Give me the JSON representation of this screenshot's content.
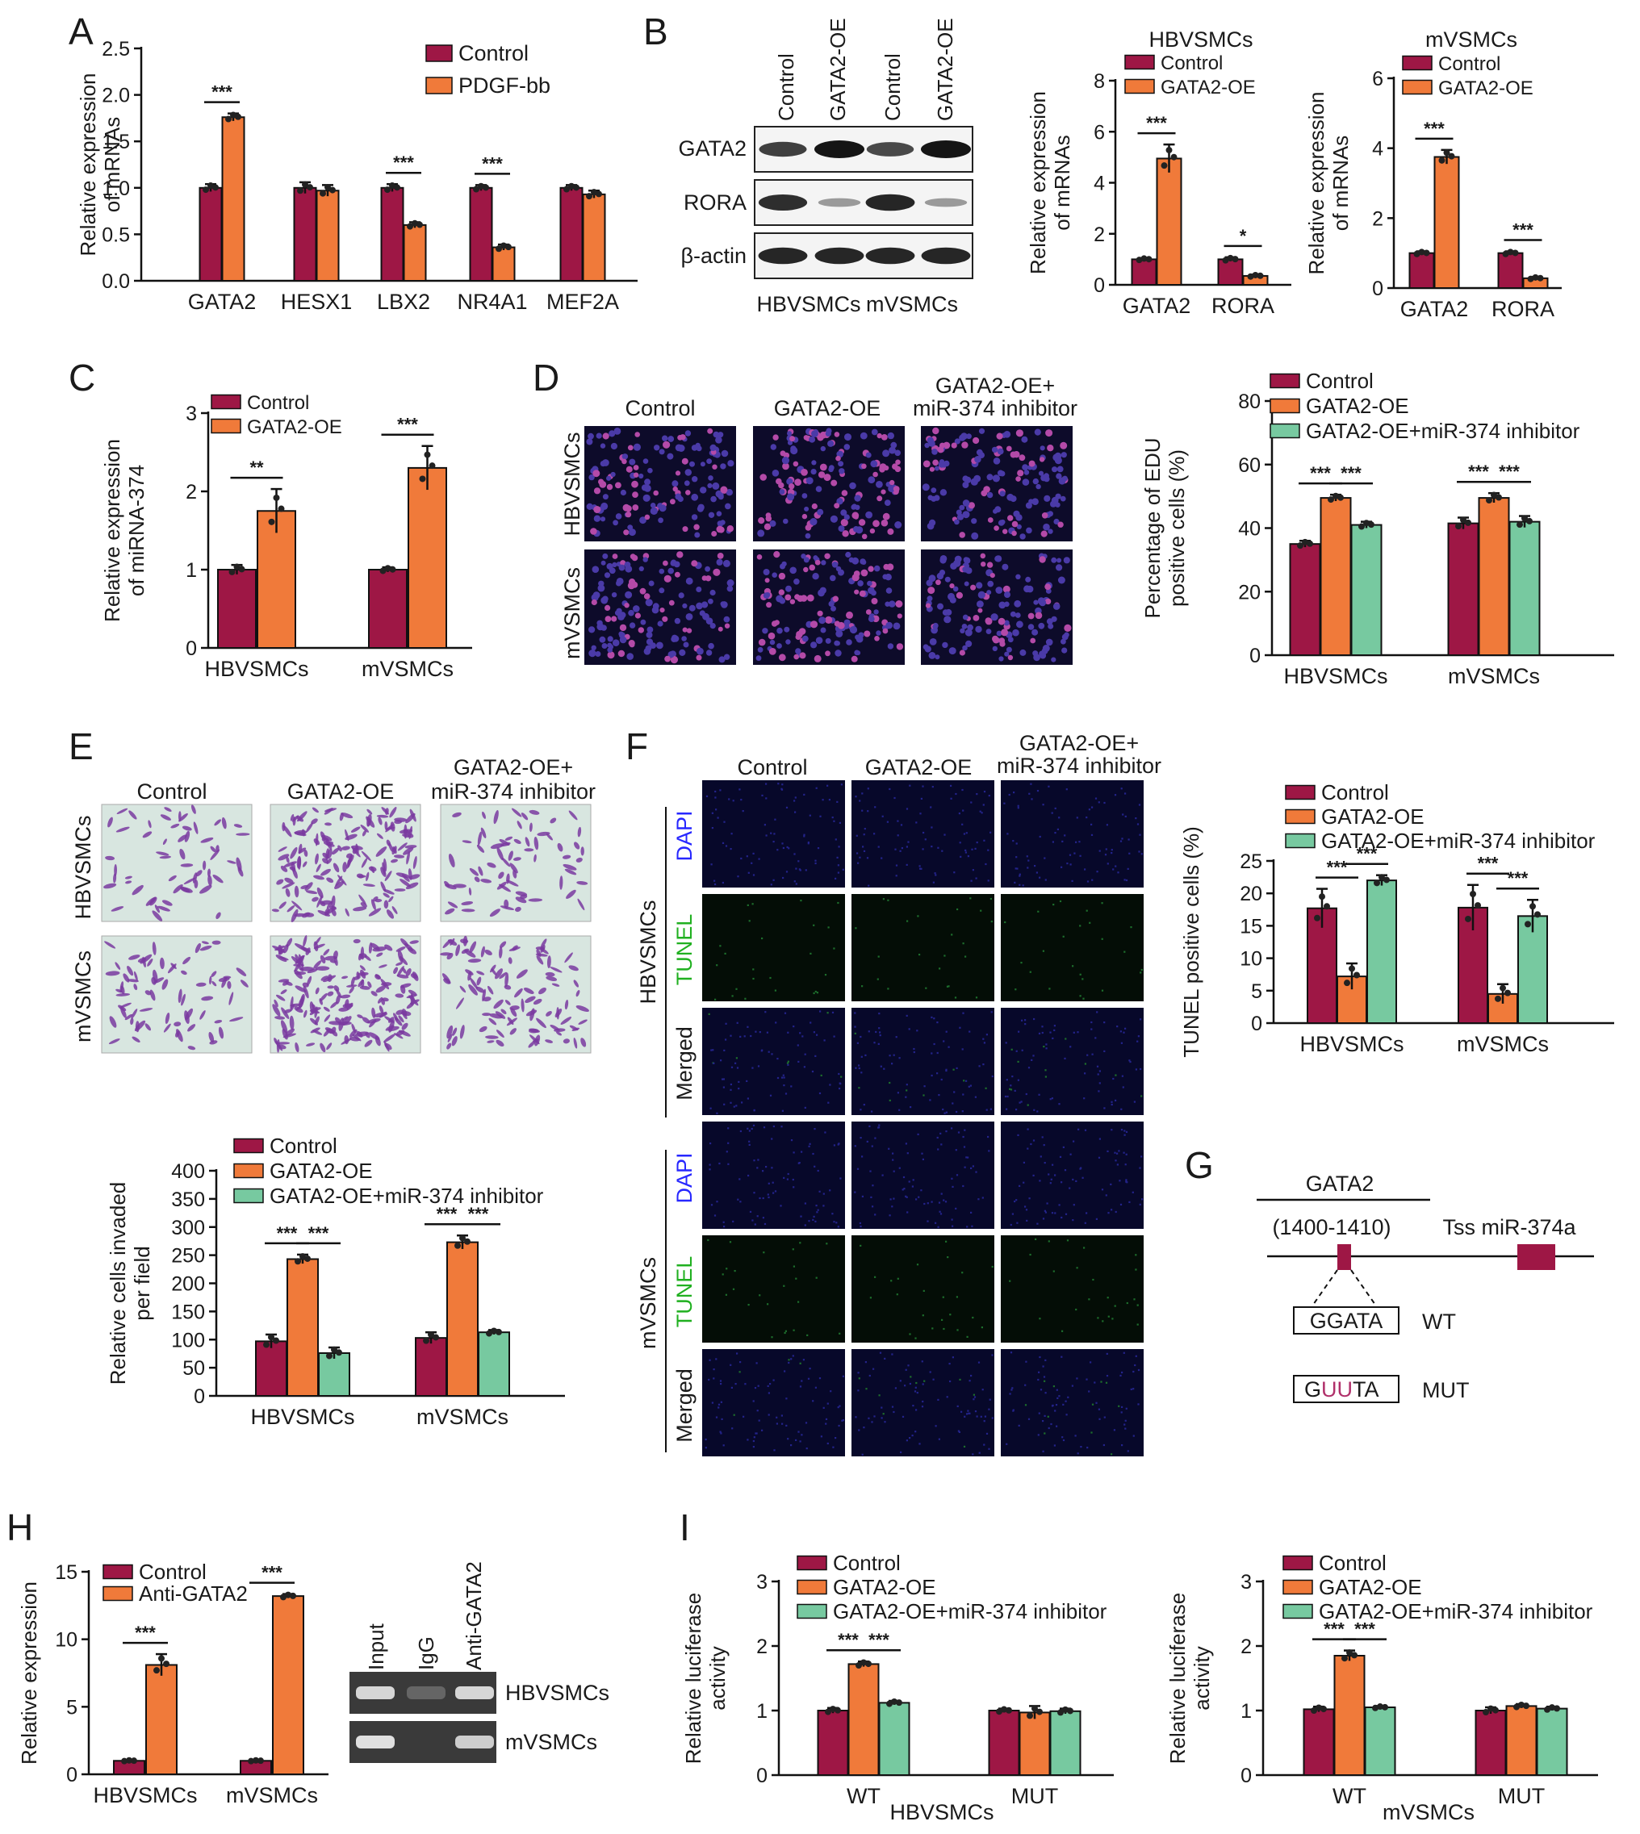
{
  "panel_letters": {
    "A": "A",
    "B": "B",
    "C": "C",
    "D": "D",
    "E": "E",
    "F": "F",
    "G": "G",
    "H": "H",
    "I": "I"
  },
  "colors": {
    "control": "#9e1745",
    "treat": "#f07a3a",
    "inhib": "#77c9a0",
    "nucleus": "#4a3aa8",
    "crystal": "#7a3aa0",
    "dapi": "#2727ff",
    "tunel": "#20b020",
    "mut": "#b0306a"
  },
  "common_labels": {
    "hbv": "HBVSMCs",
    "mv": "mVSMCs",
    "control": "Control",
    "oe": "GATA2-OE",
    "oe_plus": "GATA2-OE+",
    "inhibitor": "miR-374 inhibitor"
  },
  "panel_b_blot": {
    "lanes": [
      "Control",
      "GATA2-OE",
      "Control",
      "GATA2-OE"
    ],
    "rows": [
      "GATA2",
      "RORA",
      "β-actin"
    ],
    "groups": [
      "HBVSMCs",
      "mVSMCs"
    ],
    "intensities": [
      [
        0.75,
        1.0,
        0.7,
        1.0
      ],
      [
        0.85,
        0.2,
        0.9,
        0.2
      ],
      [
        0.9,
        0.9,
        0.9,
        0.9
      ]
    ]
  },
  "panel_f_stains": [
    "DAPI",
    "TUNEL",
    "Merged"
  ],
  "panel_g": {
    "gene": "GATA2",
    "site": "(1400-1410)",
    "tss": "Tss miR-374a",
    "wt_seq": "GGATA",
    "wt_label": "WT",
    "mut_seq_a": "G",
    "mut_seq_b": "UU",
    "mut_seq_c": "TA",
    "mut_label": "MUT"
  },
  "panel_h_gel": {
    "lanes": [
      "Input",
      "IgG",
      "Anti-GATA2"
    ],
    "rows": [
      "HBVSMCs",
      "mVSMCs"
    ],
    "intensities": [
      [
        0.9,
        0.25,
        0.9
      ],
      [
        0.95,
        0.0,
        0.85
      ]
    ]
  },
  "chart_data": [
    {
      "panel": "A",
      "type": "bar",
      "categories": [
        "GATA2",
        "HESX1",
        "LBX2",
        "NR4A1",
        "MEF2A"
      ],
      "series": [
        {
          "name": "Control",
          "values": [
            1.0,
            1.0,
            1.0,
            1.0,
            1.0
          ],
          "errors": [
            0.04,
            0.06,
            0.04,
            0.03,
            0.03
          ]
        },
        {
          "name": "PDGF-bb",
          "values": [
            1.76,
            0.97,
            0.6,
            0.36,
            0.93
          ],
          "errors": [
            0.04,
            0.06,
            0.03,
            0.03,
            0.04
          ]
        }
      ],
      "ylabel": "Relative expression\nof mRNAs",
      "ylim": [
        0,
        2.5
      ],
      "yticks": [
        0.0,
        0.5,
        1.0,
        1.5,
        2.0,
        2.5
      ],
      "tick_decimals": 1,
      "significance": [
        [
          "***",
          0
        ],
        [
          "***",
          2
        ],
        [
          "***",
          3
        ]
      ]
    },
    {
      "panel": "B2",
      "type": "bar",
      "title": "HBVSMCs",
      "categories": [
        "GATA2",
        "RORA"
      ],
      "series": [
        {
          "name": "Control",
          "values": [
            1.0,
            1.0
          ],
          "errors": [
            0.05,
            0.08
          ]
        },
        {
          "name": "GATA2-OE",
          "values": [
            4.95,
            0.35
          ],
          "errors": [
            0.55,
            0.05
          ]
        }
      ],
      "ylabel": "Relative expression\nof mRNAs",
      "ylim": [
        0,
        8
      ],
      "yticks": [
        0,
        2,
        4,
        6,
        8
      ],
      "tick_decimals": 0,
      "significance": [
        [
          "***",
          0
        ],
        [
          "*",
          1
        ]
      ]
    },
    {
      "panel": "B3",
      "type": "bar",
      "title": "mVSMCs",
      "categories": [
        "GATA2",
        "RORA"
      ],
      "series": [
        {
          "name": "Control",
          "values": [
            1.0,
            1.0
          ],
          "errors": [
            0.05,
            0.05
          ]
        },
        {
          "name": "GATA2-OE",
          "values": [
            3.75,
            0.28
          ],
          "errors": [
            0.2,
            0.04
          ]
        }
      ],
      "ylabel": "Relative expression\nof mRNAs",
      "ylim": [
        0,
        6
      ],
      "yticks": [
        0,
        2,
        4,
        6
      ],
      "tick_decimals": 0,
      "significance": [
        [
          "***",
          0
        ],
        [
          "***",
          1
        ]
      ]
    },
    {
      "panel": "C",
      "type": "bar",
      "categories": [
        "HBVSMCs",
        "mVSMCs"
      ],
      "series": [
        {
          "name": "Control",
          "values": [
            1.0,
            1.0
          ],
          "errors": [
            0.06,
            0.03
          ]
        },
        {
          "name": "GATA2-OE",
          "values": [
            1.75,
            2.3
          ],
          "errors": [
            0.28,
            0.28
          ]
        }
      ],
      "ylabel": "Relative expression\nof miRNA-374",
      "ylim": [
        0,
        3
      ],
      "yticks": [
        0,
        1,
        2,
        3
      ],
      "tick_decimals": 0,
      "significance": [
        [
          "**",
          0
        ],
        [
          "***",
          1
        ]
      ]
    },
    {
      "panel": "D",
      "type": "bar",
      "categories": [
        "HBVSMCs",
        "mVSMCs"
      ],
      "series": [
        {
          "name": "Control",
          "values": [
            35,
            41.5
          ],
          "errors": [
            1.0,
            1.8
          ]
        },
        {
          "name": "GATA2-OE",
          "values": [
            49.5,
            49.5
          ],
          "errors": [
            1.0,
            1.5
          ]
        },
        {
          "name": "GATA2-OE+miR-374 inhibitor",
          "values": [
            41,
            42
          ],
          "errors": [
            1.0,
            1.8
          ]
        }
      ],
      "ylabel": "Percentage of EDU\npositive cells (%)",
      "ylim": [
        0,
        80
      ],
      "yticks": [
        0,
        20,
        40,
        60,
        80
      ],
      "tick_decimals": 0,
      "significance": [
        [
          "***",
          0,
          0,
          1
        ],
        [
          "***",
          0,
          1,
          2
        ],
        [
          "***",
          1,
          0,
          1
        ],
        [
          "***",
          1,
          1,
          2
        ]
      ]
    },
    {
      "panel": "E",
      "type": "bar",
      "categories": [
        "HBVSMCs",
        "mVSMCs"
      ],
      "series": [
        {
          "name": "Control",
          "values": [
            97,
            103
          ],
          "errors": [
            12,
            10
          ]
        },
        {
          "name": "GATA2-OE",
          "values": [
            243,
            273
          ],
          "errors": [
            8,
            12
          ]
        },
        {
          "name": "GATA2-OE+miR-374 inhibitor",
          "values": [
            76,
            113
          ],
          "errors": [
            10,
            4
          ]
        }
      ],
      "ylabel": "Relative cells invaded\nper field",
      "ylim": [
        0,
        400
      ],
      "yticks": [
        0,
        50,
        100,
        150,
        200,
        250,
        300,
        350,
        400
      ],
      "tick_decimals": 0,
      "significance": [
        [
          "***",
          0,
          0,
          1
        ],
        [
          "***",
          0,
          1,
          2
        ],
        [
          "***",
          1,
          0,
          1
        ],
        [
          "***",
          1,
          1,
          2
        ]
      ]
    },
    {
      "panel": "F",
      "type": "bar",
      "categories": [
        "HBVSMCs",
        "mVSMCs"
      ],
      "series": [
        {
          "name": "Control",
          "values": [
            17.7,
            17.8
          ],
          "errors": [
            3.0,
            3.5
          ]
        },
        {
          "name": "GATA2-OE",
          "values": [
            7.2,
            4.5
          ],
          "errors": [
            2.0,
            1.5
          ]
        },
        {
          "name": "GATA2-OE+miR-374 inhibitor",
          "values": [
            22,
            16.5
          ],
          "errors": [
            0.8,
            2.5
          ]
        }
      ],
      "ylabel": "TUNEL positive cells (%)",
      "ylim": [
        0,
        25
      ],
      "yticks": [
        0,
        5,
        10,
        15,
        20,
        25
      ],
      "tick_decimals": 0,
      "significance": [
        [
          "***",
          0,
          0,
          1
        ],
        [
          "***",
          0,
          1,
          2
        ],
        [
          "***",
          1,
          0,
          1
        ],
        [
          "***",
          1,
          1,
          2
        ]
      ]
    },
    {
      "panel": "H",
      "type": "bar",
      "categories": [
        "HBVSMCs",
        "mVSMCs"
      ],
      "series": [
        {
          "name": "Control",
          "values": [
            1.0,
            1.0
          ],
          "errors": [
            0.05,
            0.05
          ]
        },
        {
          "name": "Anti-GATA2",
          "values": [
            8.1,
            13.2
          ],
          "errors": [
            0.8,
            0.15
          ]
        }
      ],
      "ylabel": "Relative expression",
      "ylim": [
        0,
        15
      ],
      "yticks": [
        0,
        5,
        10,
        15
      ],
      "tick_decimals": 0,
      "significance": [
        [
          "***",
          0
        ],
        [
          "***",
          1
        ]
      ]
    },
    {
      "panel": "I1",
      "type": "bar",
      "categories": [
        "WT",
        "MUT"
      ],
      "group_label": "HBVSMCs",
      "series": [
        {
          "name": "Control",
          "values": [
            1.0,
            1.0
          ],
          "errors": [
            0.04,
            0.03
          ]
        },
        {
          "name": "GATA2-OE",
          "values": [
            1.72,
            0.97
          ],
          "errors": [
            0.04,
            0.1
          ]
        },
        {
          "name": "GATA2-OE+miR-374 inhibitor",
          "values": [
            1.12,
            0.99
          ],
          "errors": [
            0.03,
            0.04
          ]
        }
      ],
      "ylabel": "Relative luciferase\nactivity",
      "ylim": [
        0,
        3
      ],
      "yticks": [
        0,
        1,
        2,
        3
      ],
      "tick_decimals": 0,
      "significance": [
        [
          "***",
          0,
          0,
          1
        ],
        [
          "***",
          0,
          1,
          2
        ]
      ]
    },
    {
      "panel": "I2",
      "type": "bar",
      "categories": [
        "WT",
        "MUT"
      ],
      "group_label": "mVSMCs",
      "series": [
        {
          "name": "Control",
          "values": [
            1.02,
            1.0
          ],
          "errors": [
            0.04,
            0.05
          ]
        },
        {
          "name": "GATA2-OE",
          "values": [
            1.85,
            1.07
          ],
          "errors": [
            0.08,
            0.03
          ]
        },
        {
          "name": "GATA2-OE+miR-374 inhibitor",
          "values": [
            1.05,
            1.03
          ],
          "errors": [
            0.02,
            0.03
          ]
        }
      ],
      "ylabel": "Relative luciferase\nactivity",
      "ylim": [
        0,
        3
      ],
      "yticks": [
        0,
        1,
        2,
        3
      ],
      "tick_decimals": 0,
      "significance": [
        [
          "***",
          0,
          0,
          1
        ],
        [
          "***",
          0,
          1,
          2
        ]
      ]
    }
  ]
}
